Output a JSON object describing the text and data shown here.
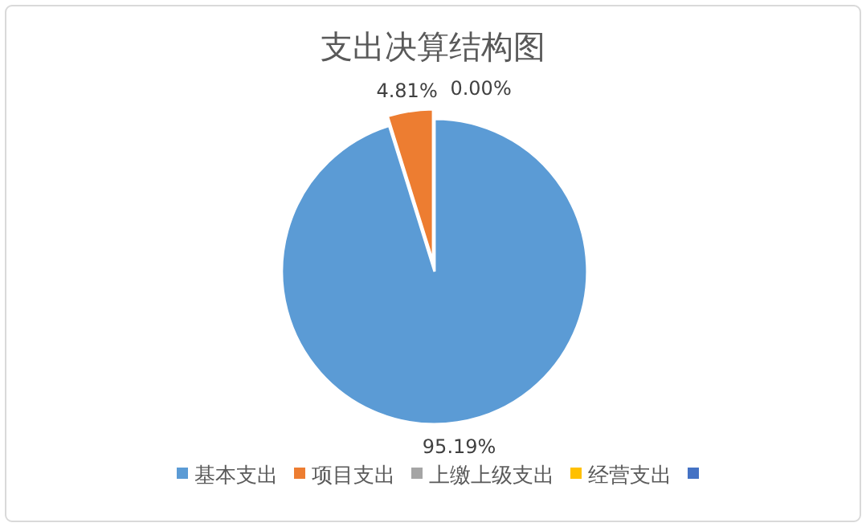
{
  "chart_data": {
    "type": "pie",
    "title": "支出决算结构图",
    "categories": [
      "基本支出",
      "项目支出",
      "上缴上级支出",
      "经营支出",
      null
    ],
    "values": [
      95.19,
      4.81,
      0,
      0,
      0
    ],
    "colors": [
      "#5b9bd5",
      "#ed7d31",
      "#a5a5a5",
      "#ffc000",
      "#4472c4"
    ],
    "value_labels": [
      "95.19%",
      "4.81%",
      "0.00%",
      null,
      null
    ],
    "legend": "bottom"
  }
}
